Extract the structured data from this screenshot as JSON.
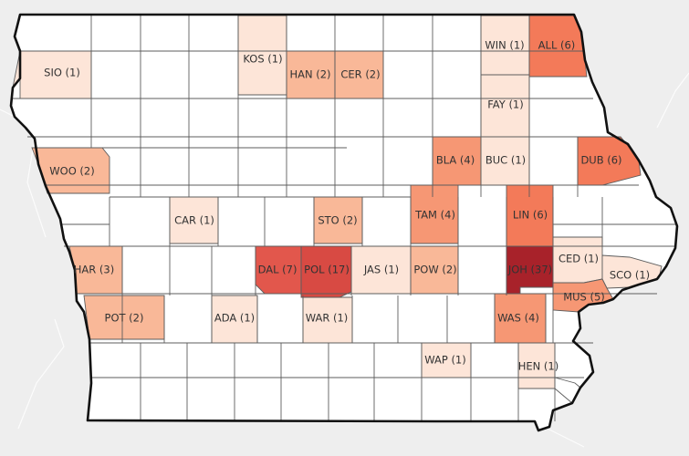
{
  "map": {
    "counties": [
      {
        "label": "SIO (1)",
        "count": 1
      },
      {
        "label": "KOS (1)",
        "count": 1
      },
      {
        "label": "HAN (2)",
        "count": 2
      },
      {
        "label": "CER (2)",
        "count": 2
      },
      {
        "label": "WIN (1)",
        "count": 1
      },
      {
        "label": "ALL (6)",
        "count": 6
      },
      {
        "label": "FAY (1)",
        "count": 1
      },
      {
        "label": "WOO (2)",
        "count": 2
      },
      {
        "label": "BLA (4)",
        "count": 4
      },
      {
        "label": "BUC (1)",
        "count": 1
      },
      {
        "label": "DUB (6)",
        "count": 6
      },
      {
        "label": "CAR (1)",
        "count": 1
      },
      {
        "label": "STO (2)",
        "count": 2
      },
      {
        "label": "TAM (4)",
        "count": 4
      },
      {
        "label": "LIN (6)",
        "count": 6
      },
      {
        "label": "HAR (3)",
        "count": 3
      },
      {
        "label": "DAL (7)",
        "count": 7
      },
      {
        "label": "POL (17)",
        "count": 17
      },
      {
        "label": "JAS (1)",
        "count": 1
      },
      {
        "label": "POW (2)",
        "count": 2
      },
      {
        "label": "JOH (37)",
        "count": 37
      },
      {
        "label": "CED (1)",
        "count": 1
      },
      {
        "label": "SCO (1)",
        "count": 1
      },
      {
        "label": "MUS (5)",
        "count": 5
      },
      {
        "label": "POT (2)",
        "count": 2
      },
      {
        "label": "ADA (1)",
        "count": 1
      },
      {
        "label": "WAR (1)",
        "count": 1
      },
      {
        "label": "WAS (4)",
        "count": 4
      },
      {
        "label": "WAP (1)",
        "count": 1
      },
      {
        "label": "HEN (1)",
        "count": 1
      }
    ],
    "colors": {
      "background": "#eeeeee",
      "land": "#ffffff",
      "scale": [
        "#fde5d8",
        "#f9b898",
        "#f69774",
        "#f37a59",
        "#e2574c",
        "#d84a43",
        "#a8222a"
      ]
    }
  }
}
